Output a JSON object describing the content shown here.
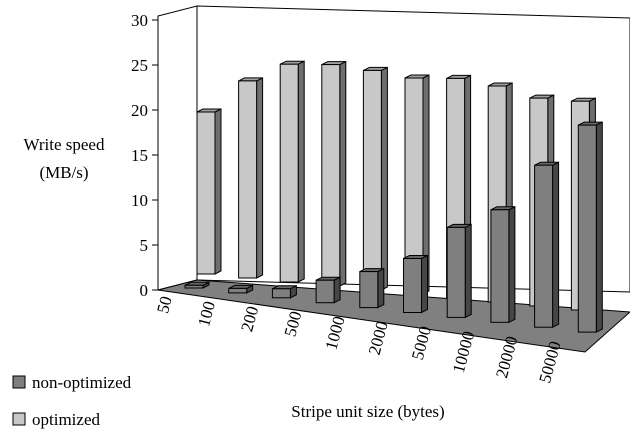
{
  "chart_data": {
    "type": "bar",
    "title": "",
    "xlabel": "Stripe unit size (bytes)",
    "ylabel": "Write speed (MB/s)",
    "ylabel_lines": [
      "Write speed",
      "(MB/s)"
    ],
    "ylim": [
      0,
      30
    ],
    "yticks": [
      "0",
      "5",
      "10",
      "15",
      "20",
      "25",
      "30"
    ],
    "categories": [
      "50",
      "100",
      "200",
      "500",
      "1000",
      "2000",
      "5000",
      "10000",
      "20000",
      "50000"
    ],
    "grid": false,
    "legend_position": "bottom-left",
    "series": [
      {
        "name": "non-optimized",
        "color": "#7f7f7f",
        "values": [
          0.3,
          0.5,
          1.0,
          2.5,
          4.0,
          6.0,
          10.0,
          12.5,
          18.0,
          23.0
        ]
      },
      {
        "name": "optimized",
        "color": "#c8c8c8",
        "values": [
          18.0,
          21.9,
          24.2,
          24.6,
          24.4,
          24.0,
          24.4,
          24.0,
          23.1,
          23.2
        ]
      }
    ]
  }
}
